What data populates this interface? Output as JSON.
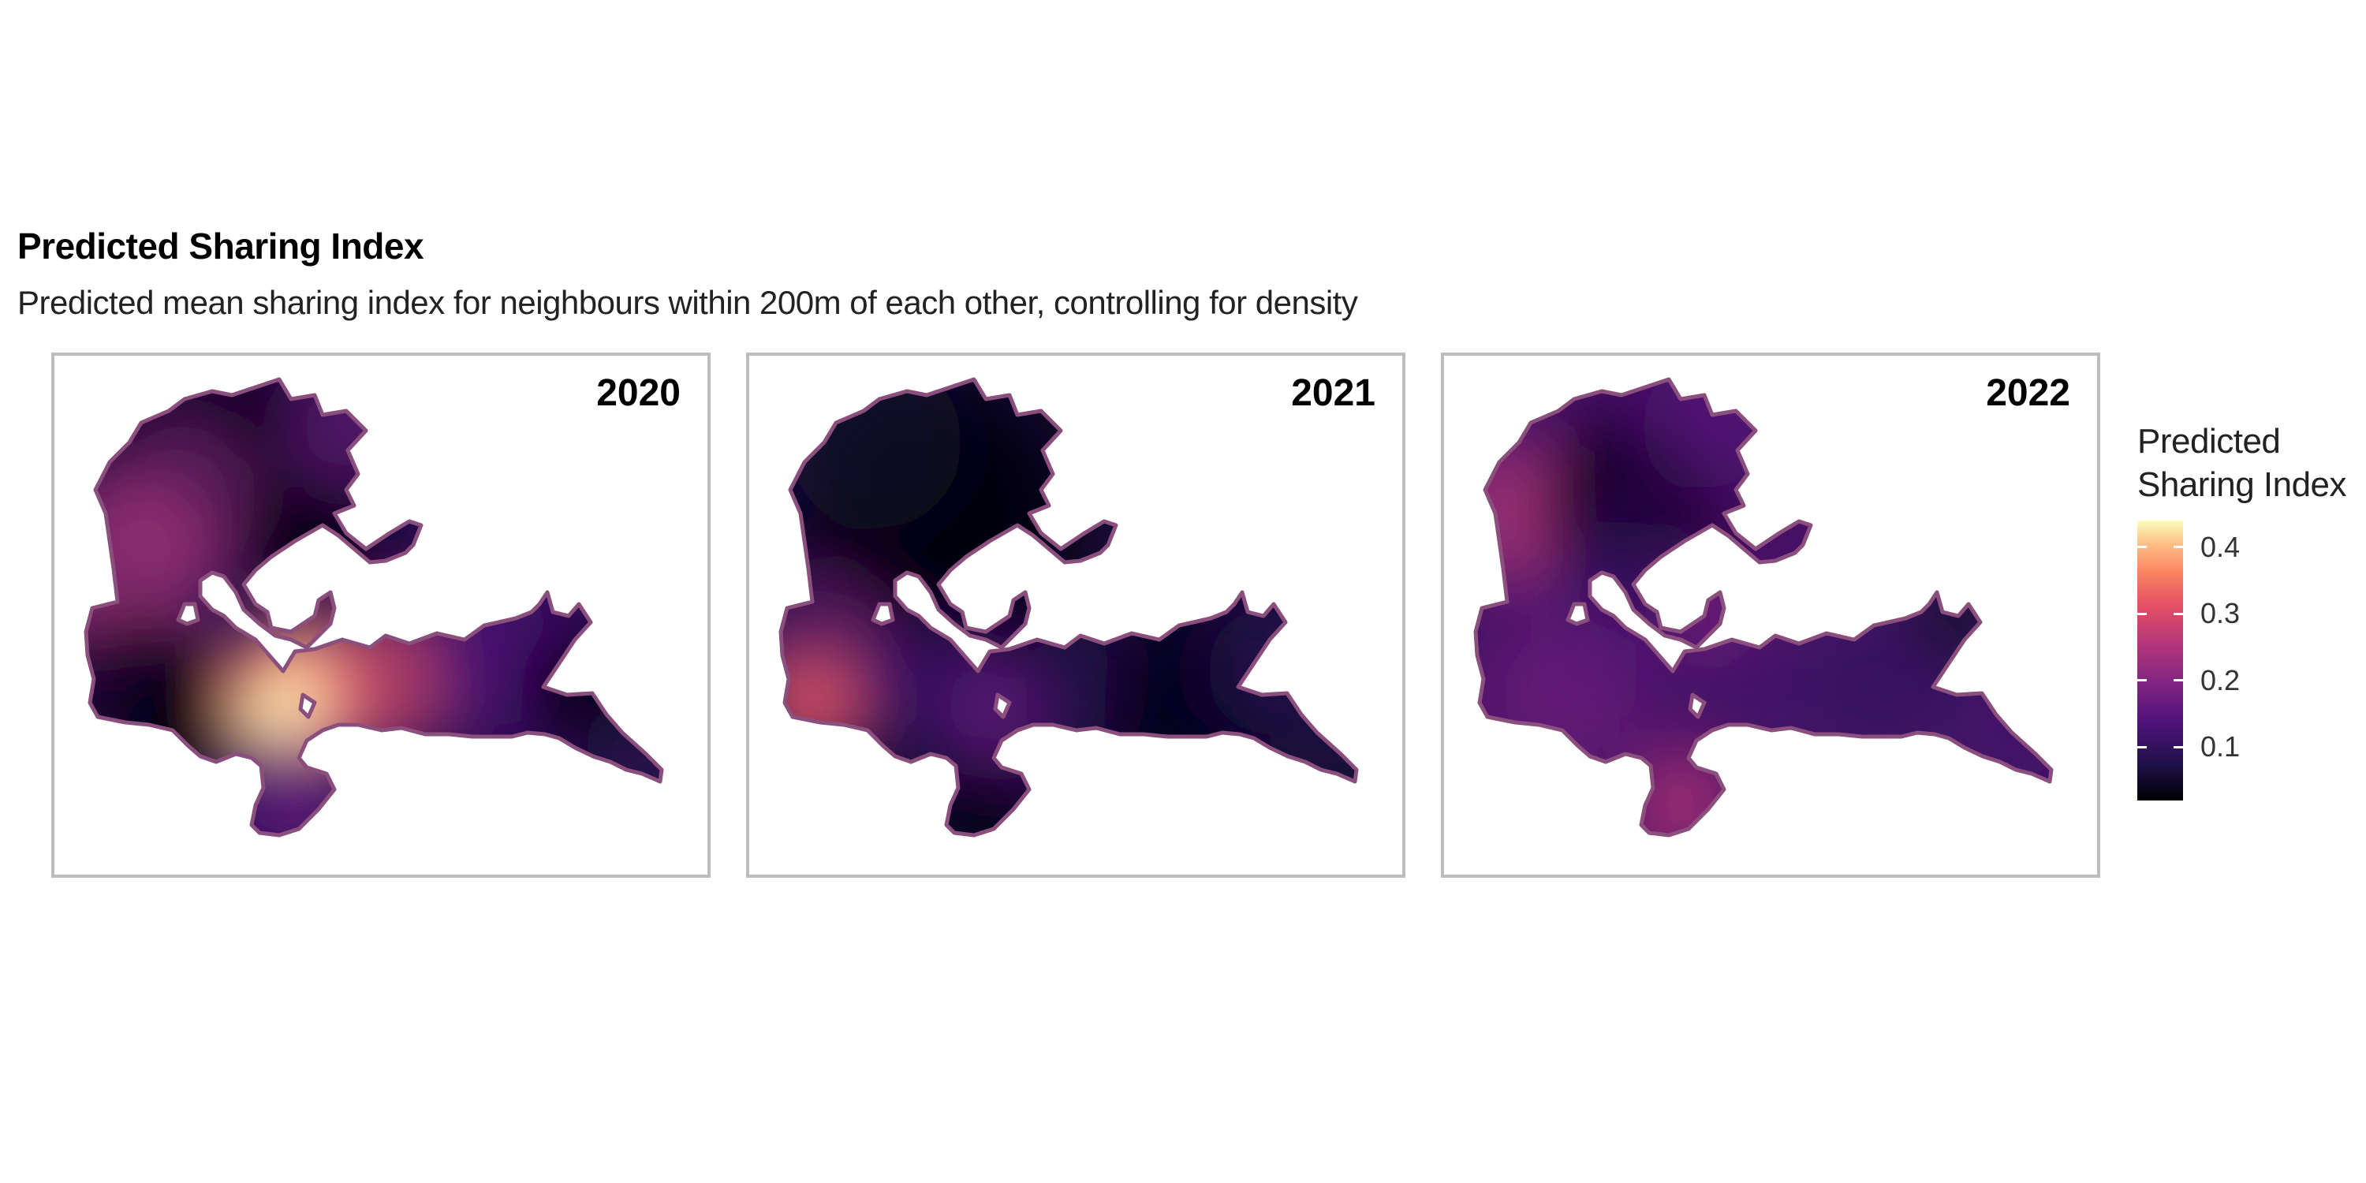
{
  "title": "Predicted Sharing Index",
  "subtitle": "Predicted mean sharing index for neighbours within 200m of each other, controlling for density",
  "panels": [
    {
      "label": "2020"
    },
    {
      "label": "2021"
    },
    {
      "label": "2022"
    }
  ],
  "legend": {
    "title_line1": "Predicted",
    "title_line2": "Sharing Index",
    "ticks": [
      "0.4",
      "0.3",
      "0.2",
      "0.1"
    ],
    "tick_values": [
      0.4,
      0.3,
      0.2,
      0.1
    ],
    "scale_min": 0.02,
    "scale_max": 0.44,
    "palette": "magma"
  },
  "colors": {
    "outline": "#8a4f7d",
    "panel_border": "#bdbdbd",
    "magma_low": "#000004",
    "magma_high": "#fcfdbf"
  }
}
